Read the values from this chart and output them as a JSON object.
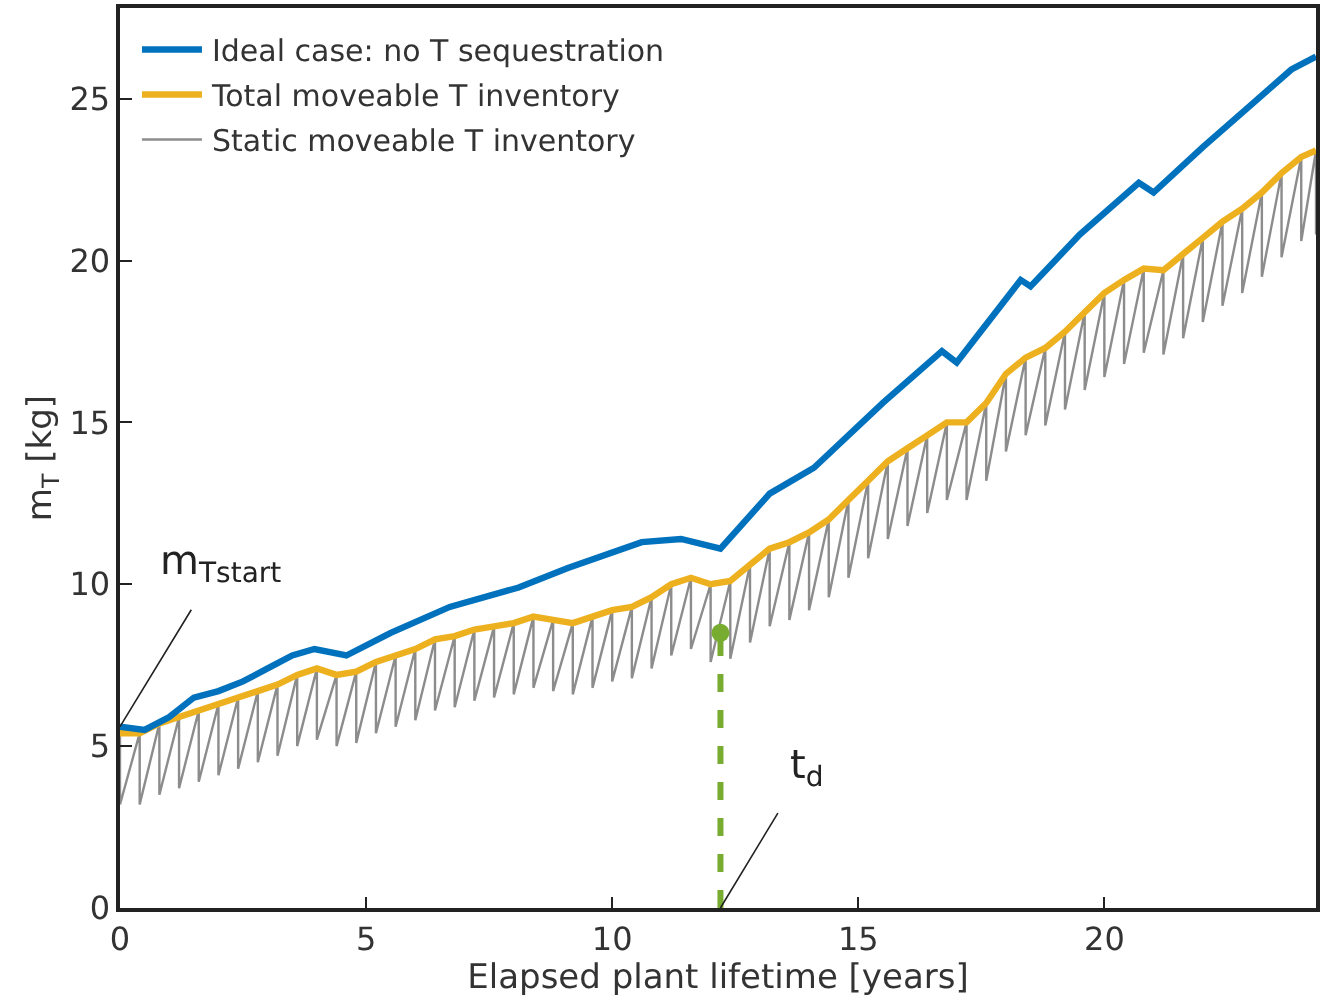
{
  "chart_data": {
    "type": "line",
    "xlabel": "Elapsed plant lifetime [years]",
    "ylabel": "m$_{T}$ [kg]",
    "xlim": [
      0,
      24.3
    ],
    "xticks": [
      0,
      5,
      10,
      15,
      20
    ],
    "ylim": [
      0,
      27.8
    ],
    "yticks": [
      0,
      5,
      10,
      15,
      20,
      25
    ],
    "legend": "top left",
    "marker": "none",
    "series": [
      {
        "name": "Static moveable T inventory",
        "color": "#8c8c8c",
        "x": [
          0,
          0,
          0.4,
          0.4,
          0.8,
          0.8,
          1.2,
          1.2,
          1.6,
          1.6,
          2.0,
          2.0,
          2.4,
          2.4,
          2.8,
          2.8,
          3.2,
          3.2,
          3.6,
          3.6,
          4.0,
          4.0,
          4.4,
          4.4,
          4.8,
          4.8,
          5.2,
          5.2,
          5.6,
          5.6,
          6.0,
          6.0,
          6.4,
          6.4,
          6.8,
          6.8,
          7.2,
          7.2,
          7.6,
          7.6,
          8.0,
          8.0,
          8.4,
          8.4,
          8.8,
          8.8,
          9.2,
          9.2,
          9.6,
          9.6,
          10.0,
          10.0,
          10.4,
          10.4,
          10.8,
          10.8,
          11.2,
          11.2,
          11.6,
          11.6,
          12.0,
          12.0,
          12.4,
          12.4,
          12.8,
          12.8,
          13.2,
          13.2,
          13.6,
          13.6,
          14.0,
          14.0,
          14.4,
          14.4,
          14.8,
          14.8,
          15.2,
          15.2,
          15.6,
          15.6,
          16.0,
          16.0,
          16.4,
          16.4,
          16.8,
          16.8,
          17.2,
          17.2,
          17.6,
          17.6,
          18.0,
          18.0,
          18.4,
          18.4,
          18.8,
          18.8,
          19.2,
          19.2,
          19.6,
          19.6,
          20.0,
          20.0,
          20.4,
          20.4,
          20.8,
          20.8,
          21.2,
          21.2,
          21.6,
          21.6,
          22.0,
          22.0,
          22.4,
          22.4,
          22.8,
          22.8,
          23.2,
          23.2,
          23.6,
          23.6,
          24.0,
          24.0,
          24.3,
          24.3
        ],
        "values": [
          5.4,
          3.2,
          5.4,
          3.2,
          5.7,
          3.5,
          5.9,
          3.7,
          6.1,
          3.9,
          6.3,
          4.1,
          6.5,
          4.3,
          6.7,
          4.5,
          6.9,
          4.7,
          7.2,
          5.0,
          7.4,
          5.2,
          7.2,
          5.0,
          7.3,
          5.1,
          7.6,
          5.4,
          7.8,
          5.6,
          8.0,
          5.8,
          8.3,
          6.1,
          8.4,
          6.2,
          8.6,
          6.4,
          8.7,
          6.5,
          8.8,
          6.6,
          9.0,
          6.8,
          8.9,
          6.7,
          8.8,
          6.6,
          9.0,
          6.8,
          9.2,
          7.0,
          9.3,
          7.1,
          9.6,
          7.4,
          10.0,
          7.8,
          10.2,
          8.0,
          10.0,
          7.6,
          10.1,
          7.7,
          10.6,
          8.2,
          11.1,
          8.7,
          11.3,
          8.9,
          11.6,
          9.2,
          12.0,
          9.6,
          12.6,
          10.2,
          13.2,
          10.8,
          13.8,
          11.4,
          14.2,
          11.8,
          14.6,
          12.2,
          15.0,
          12.6,
          15.0,
          12.6,
          15.6,
          13.2,
          16.5,
          14.1,
          17.0,
          14.6,
          17.3,
          14.9,
          17.8,
          15.4,
          18.4,
          16.0,
          19.0,
          16.4,
          19.4,
          16.8,
          19.75,
          17.15,
          19.7,
          17.1,
          20.2,
          17.6,
          20.7,
          18.1,
          21.2,
          18.6,
          21.6,
          19.0,
          22.1,
          19.5,
          22.7,
          20.1,
          23.2,
          20.6,
          23.4,
          20.8
        ]
      },
      {
        "name": "Total moveable T inventory",
        "color": "#edb120",
        "x": [
          0,
          0.4,
          0.8,
          1.2,
          1.6,
          2.0,
          2.4,
          2.8,
          3.2,
          3.6,
          4.0,
          4.4,
          4.8,
          5.2,
          5.6,
          6.0,
          6.4,
          6.8,
          7.2,
          7.6,
          8.0,
          8.4,
          8.8,
          9.2,
          9.6,
          10.0,
          10.4,
          10.8,
          11.2,
          11.6,
          12.0,
          12.4,
          12.8,
          13.2,
          13.6,
          14.0,
          14.4,
          14.8,
          15.2,
          15.6,
          16.0,
          16.4,
          16.8,
          17.2,
          17.6,
          18.0,
          18.4,
          18.8,
          19.2,
          19.6,
          20.0,
          20.4,
          20.8,
          21.2,
          21.6,
          22.0,
          22.4,
          22.8,
          23.2,
          23.6,
          24.0,
          24.3
        ],
        "values": [
          5.4,
          5.4,
          5.7,
          5.9,
          6.1,
          6.3,
          6.5,
          6.7,
          6.9,
          7.2,
          7.4,
          7.2,
          7.3,
          7.6,
          7.8,
          8.0,
          8.3,
          8.4,
          8.6,
          8.7,
          8.8,
          9.0,
          8.9,
          8.8,
          9.0,
          9.2,
          9.3,
          9.6,
          10.0,
          10.2,
          10.0,
          10.1,
          10.6,
          11.1,
          11.3,
          11.6,
          12.0,
          12.6,
          13.2,
          13.8,
          14.2,
          14.6,
          15.0,
          15.0,
          15.6,
          16.5,
          17.0,
          17.3,
          17.8,
          18.4,
          19.0,
          19.4,
          19.75,
          19.7,
          20.2,
          20.7,
          21.2,
          21.6,
          22.1,
          22.7,
          23.2,
          23.4
        ]
      },
      {
        "name": "Ideal case: no T sequestration",
        "color": "#0072bd",
        "x": [
          0,
          0.5,
          1,
          1.5,
          2,
          2.5,
          3,
          3.5,
          3.95,
          4.6,
          5.5,
          6.7,
          8.1,
          9.1,
          10.6,
          11.4,
          12.2,
          13.2,
          14.1,
          15.5,
          16.7,
          17.0,
          18.3,
          18.5,
          19.5,
          20.7,
          21.0,
          22.0,
          22.9,
          23.8,
          24.3
        ],
        "values": [
          5.6,
          5.5,
          5.9,
          6.5,
          6.7,
          7.0,
          7.4,
          7.8,
          8.0,
          7.8,
          8.5,
          9.3,
          9.9,
          10.5,
          11.3,
          11.4,
          11.1,
          12.8,
          13.6,
          15.6,
          17.2,
          16.85,
          19.4,
          19.2,
          20.8,
          22.4,
          22.1,
          23.5,
          24.7,
          25.9,
          26.3
        ]
      },
      {
        "type": "lollipop",
        "color": "#77ac30",
        "line_style": "dashed",
        "marker": "circle",
        "x": [
          12.2
        ],
        "values": [
          8.5
        ]
      }
    ],
    "annotations": [
      {
        "text": "m$_{T}$$_{start}$",
        "x": 0,
        "y": 5.6
      },
      "t$_{d}$"
    ]
  }
}
